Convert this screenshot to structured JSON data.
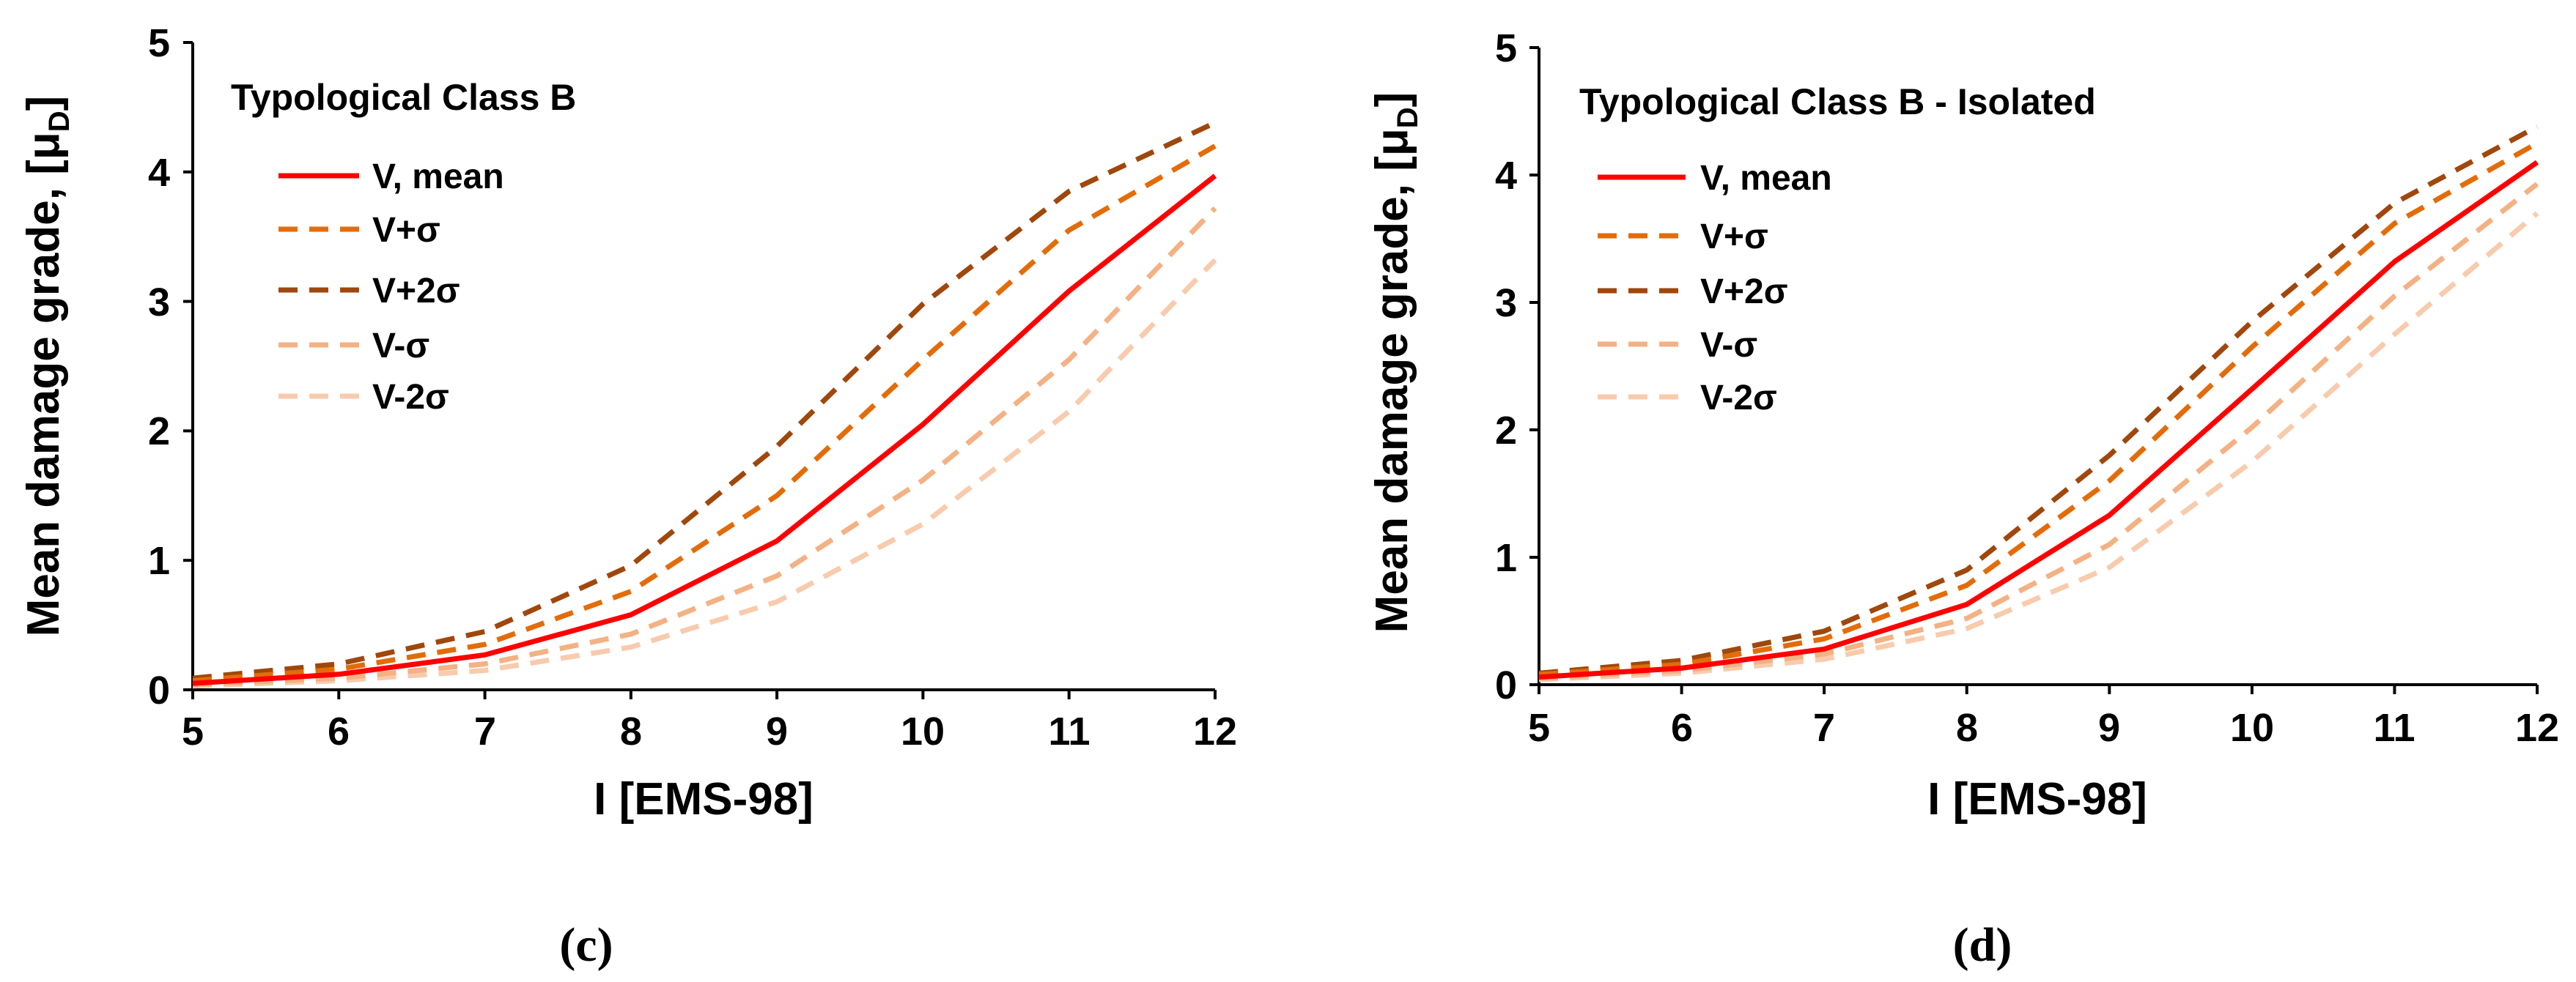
{
  "chart_data": [
    {
      "type": "line",
      "panel": "(c)",
      "title": "Typological Class B",
      "xlabel": "I [EMS-98]",
      "ylabel_main": "Mean damage grade, [μ",
      "ylabel_sub": "D",
      "ylabel_end": "]",
      "xlim": [
        5,
        12
      ],
      "ylim": [
        0,
        5
      ],
      "xticks": [
        "5",
        "6",
        "7",
        "8",
        "9",
        "10",
        "11",
        "12"
      ],
      "yticks": [
        "0",
        "1",
        "2",
        "3",
        "4",
        "5"
      ],
      "legend_position": "upper-left",
      "x": [
        5,
        6,
        7,
        8,
        9,
        10,
        11,
        12
      ],
      "series": [
        {
          "name": "V, mean",
          "color": "#ff0000",
          "style": "solid",
          "values": [
            0.05,
            0.12,
            0.27,
            0.58,
            1.15,
            2.05,
            3.08,
            3.97
          ]
        },
        {
          "name": "V+σ",
          "color": "#e36c09",
          "style": "dashed",
          "values": [
            0.07,
            0.16,
            0.35,
            0.76,
            1.5,
            2.55,
            3.55,
            4.2
          ]
        },
        {
          "name": "V+2σ",
          "color": "#a0470c",
          "style": "dashed",
          "values": [
            0.09,
            0.2,
            0.45,
            0.96,
            1.88,
            2.98,
            3.85,
            4.38
          ]
        },
        {
          "name": "V-σ",
          "color": "#f4b183",
          "style": "dashed",
          "values": [
            0.04,
            0.09,
            0.2,
            0.43,
            0.88,
            1.62,
            2.55,
            3.72
          ]
        },
        {
          "name": "V-2σ",
          "color": "#f8cbad",
          "style": "dashed",
          "values": [
            0.03,
            0.07,
            0.15,
            0.33,
            0.68,
            1.28,
            2.15,
            3.32
          ]
        }
      ]
    },
    {
      "type": "line",
      "panel": "(d)",
      "title": "Typological Class B - Isolated",
      "xlabel": "I [EMS-98]",
      "ylabel_main": "Mean damage grade, [μ",
      "ylabel_sub": "D",
      "ylabel_end": "]",
      "xlim": [
        5,
        12
      ],
      "ylim": [
        0,
        5
      ],
      "xticks": [
        "5",
        "6",
        "7",
        "8",
        "9",
        "10",
        "11",
        "12"
      ],
      "yticks": [
        "0",
        "1",
        "2",
        "3",
        "4",
        "5"
      ],
      "legend_position": "upper-left",
      "x": [
        5,
        6,
        7,
        8,
        9,
        10,
        11,
        12
      ],
      "series": [
        {
          "name": "V, mean",
          "color": "#ff0000",
          "style": "solid",
          "values": [
            0.06,
            0.13,
            0.28,
            0.63,
            1.33,
            2.32,
            3.32,
            4.1
          ]
        },
        {
          "name": "V+σ",
          "color": "#e36c09",
          "style": "dashed",
          "values": [
            0.08,
            0.16,
            0.36,
            0.78,
            1.6,
            2.65,
            3.62,
            4.25
          ]
        },
        {
          "name": "V+2σ",
          "color": "#a0470c",
          "style": "dashed",
          "values": [
            0.09,
            0.19,
            0.42,
            0.9,
            1.8,
            2.85,
            3.78,
            4.38
          ]
        },
        {
          "name": "V-σ",
          "color": "#f4b183",
          "style": "dashed",
          "values": [
            0.05,
            0.11,
            0.24,
            0.52,
            1.1,
            2.02,
            3.05,
            3.93
          ]
        },
        {
          "name": "V-2σ",
          "color": "#f8cbad",
          "style": "dashed",
          "values": [
            0.04,
            0.09,
            0.2,
            0.44,
            0.92,
            1.75,
            2.75,
            3.7
          ]
        }
      ]
    }
  ]
}
